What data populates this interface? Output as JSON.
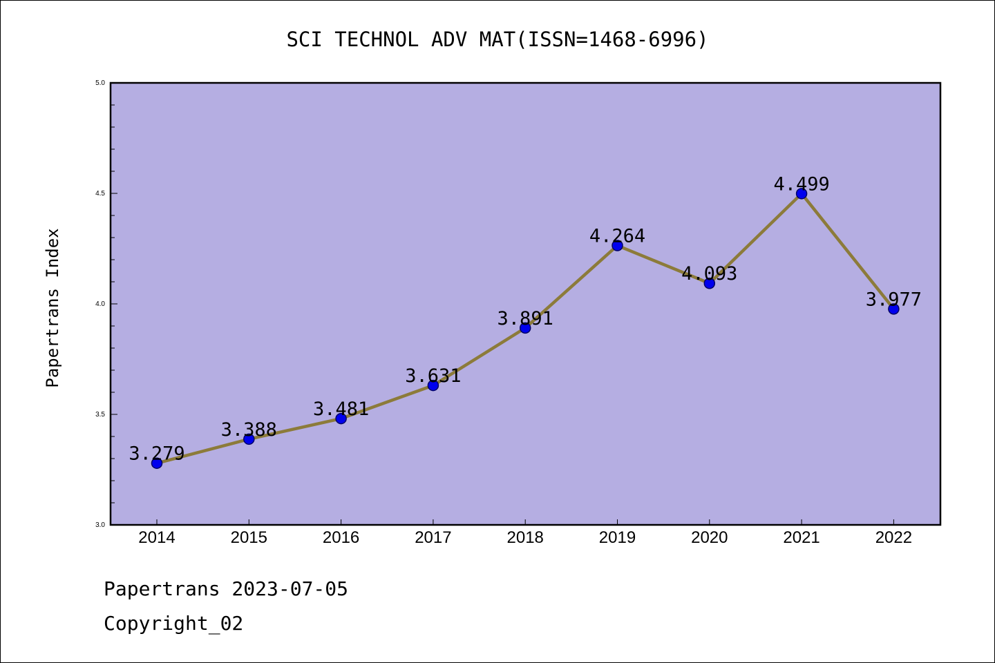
{
  "chart_data": {
    "type": "line",
    "title": "SCI TECHNOL ADV MAT(ISSN=1468-6996)",
    "xlabel": "",
    "ylabel": "Papertrans Index",
    "categories": [
      "2014",
      "2015",
      "2016",
      "2017",
      "2018",
      "2019",
      "2020",
      "2021",
      "2022"
    ],
    "values": [
      3.279,
      3.388,
      3.481,
      3.631,
      3.891,
      4.264,
      4.093,
      4.499,
      3.977
    ],
    "data_labels": [
      "3.279",
      "3.388",
      "3.481",
      "3.631",
      "3.891",
      "4.264",
      "4.093",
      "4.499",
      "3.977"
    ],
    "ylim": [
      3.0,
      5.0
    ],
    "yticks": [
      "3.0",
      "3.5",
      "4.0",
      "4.5",
      "5.0"
    ],
    "grid": false,
    "colors": {
      "plot_background": "#b5aee2",
      "line": "#8c7b3a",
      "marker_fill": "#0000ee",
      "marker_stroke": "#000066"
    }
  },
  "footer": {
    "date_line": "Papertrans 2023-07-05",
    "copyright_line": "Copyright_02"
  }
}
